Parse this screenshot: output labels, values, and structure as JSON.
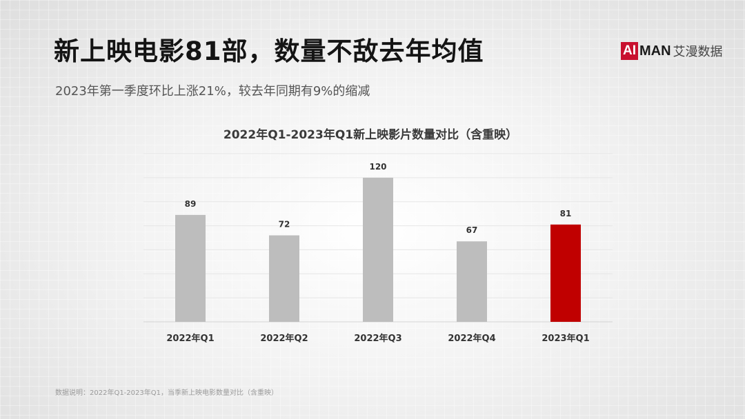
{
  "header": {
    "headline": "新上映电影81部，数量不敌去年均值",
    "subhead": "2023年第一季度环比上涨21%，较去年同期有9%的缩减"
  },
  "logo": {
    "mark": "AI",
    "brand": "MAN",
    "name_cn": "艾漫数据",
    "color": "#c8102e"
  },
  "chart_data": {
    "type": "bar",
    "title": "2022年Q1-2023年Q1新上映影片数量对比（含重映）",
    "categories": [
      "2022年Q1",
      "2022年Q2",
      "2022年Q3",
      "2022年Q4",
      "2023年Q1"
    ],
    "values": [
      89,
      72,
      120,
      67,
      81
    ],
    "xlabel": "",
    "ylabel": "",
    "ylim": [
      0,
      140
    ],
    "grid": true,
    "highlight_index": 4,
    "colors": {
      "default": "#bdbdbd",
      "highlight": "#c00000"
    }
  },
  "footnote": "数据说明：2022年Q1-2023年Q1，当季新上映电影数量对比（含重映）"
}
